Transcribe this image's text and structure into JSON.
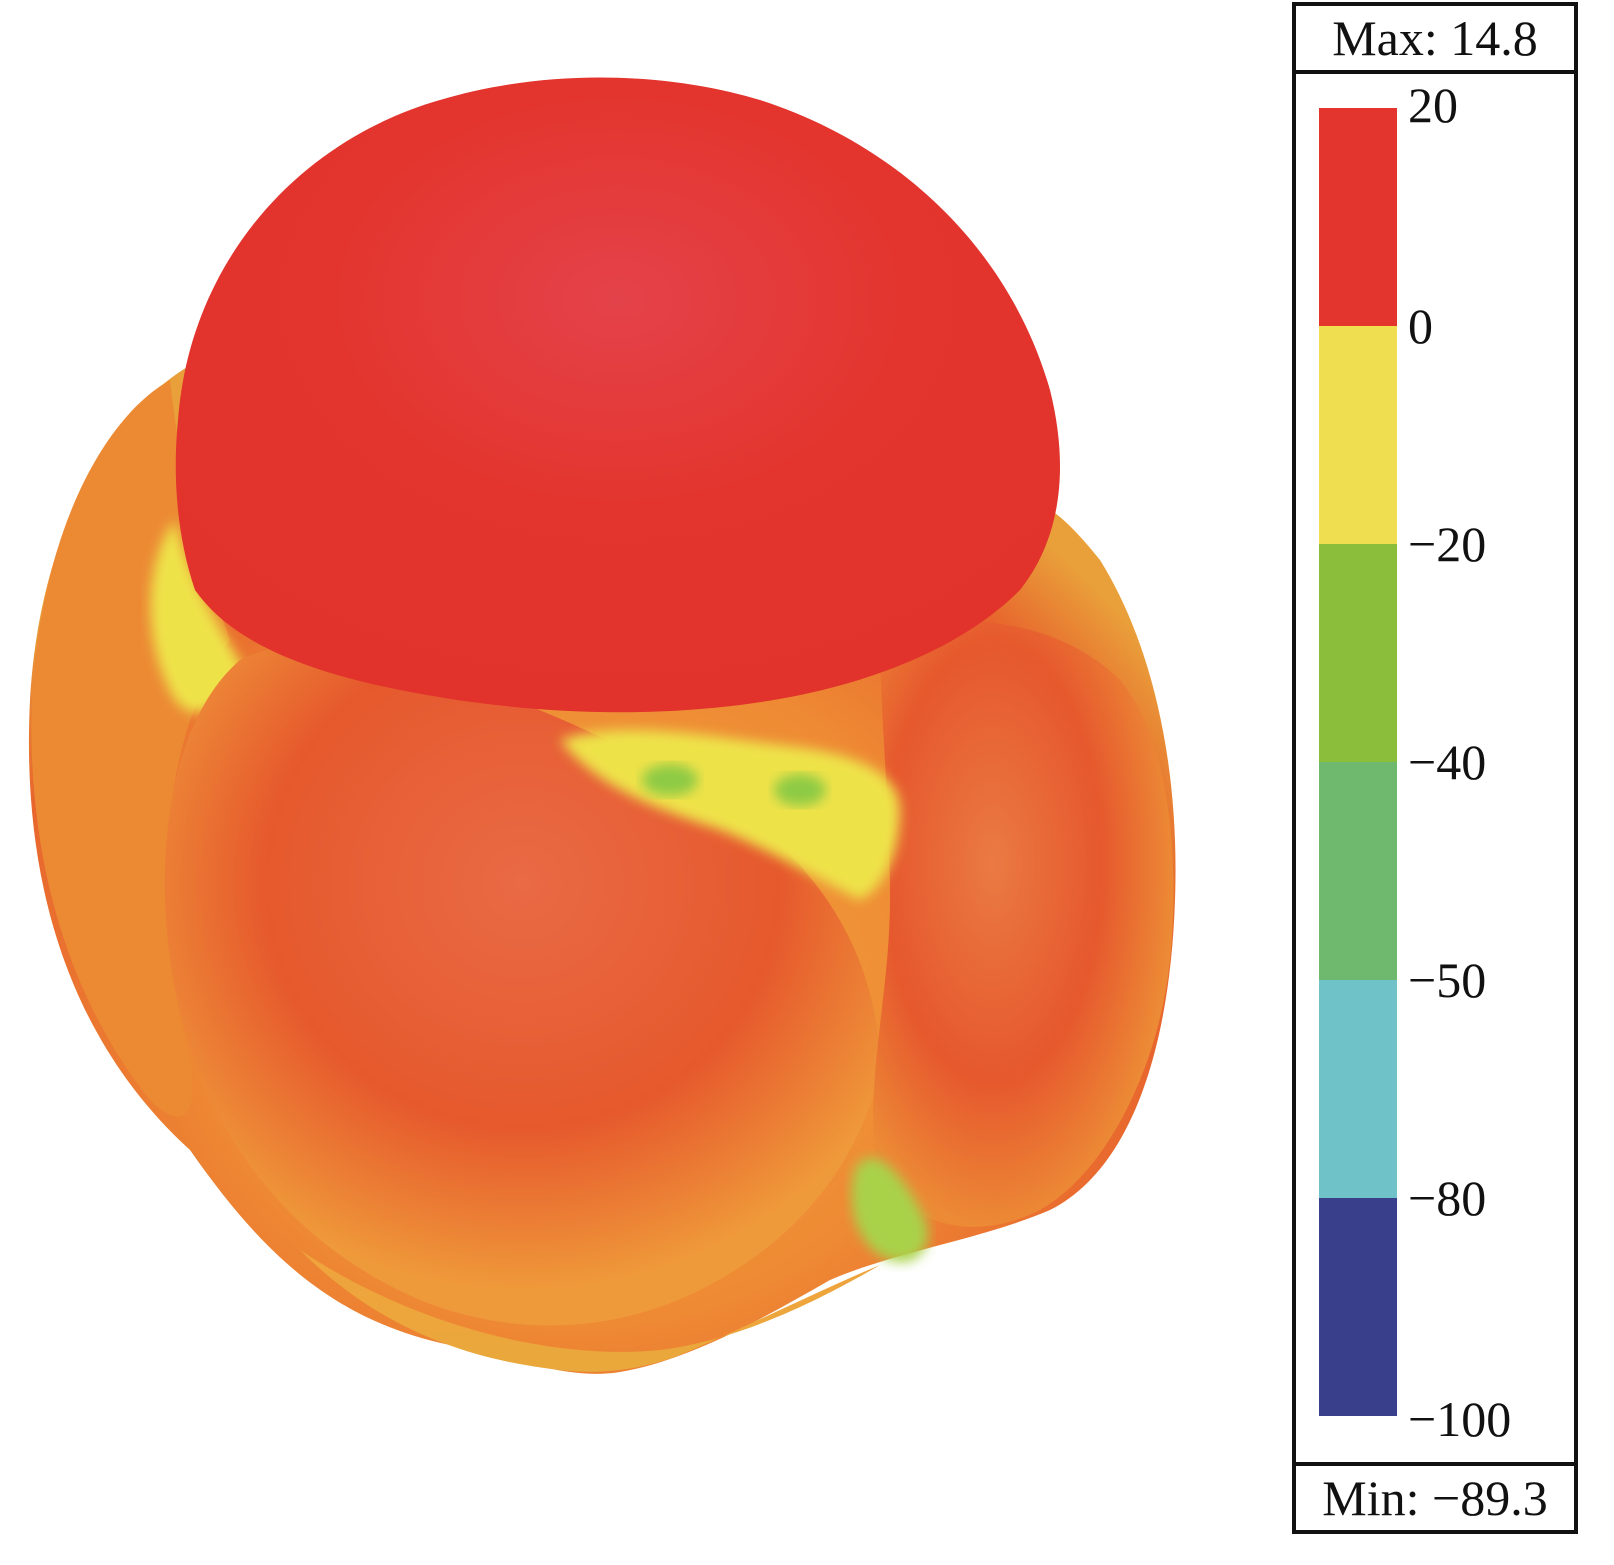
{
  "legend": {
    "max_label": "Max: 14.8",
    "min_label": "Min: −89.3",
    "ticks": [
      "20",
      "0",
      "−20",
      "−40",
      "−50",
      "−80",
      "−100"
    ],
    "bands": [
      {
        "color": "#e3352e"
      },
      {
        "color": "#efde4f"
      },
      {
        "color": "#8bbe3a"
      },
      {
        "color": "#6fb96f"
      },
      {
        "color": "#6fc3c8"
      },
      {
        "color": "#3a3f8c"
      }
    ]
  },
  "pattern": {
    "colors": {
      "main_lobe": "#e3352e",
      "body_red_orange": "#e6552c",
      "body_orange": "#f09a3a",
      "body_yellow": "#eee24a",
      "body_green": "#8ecb45"
    }
  }
}
